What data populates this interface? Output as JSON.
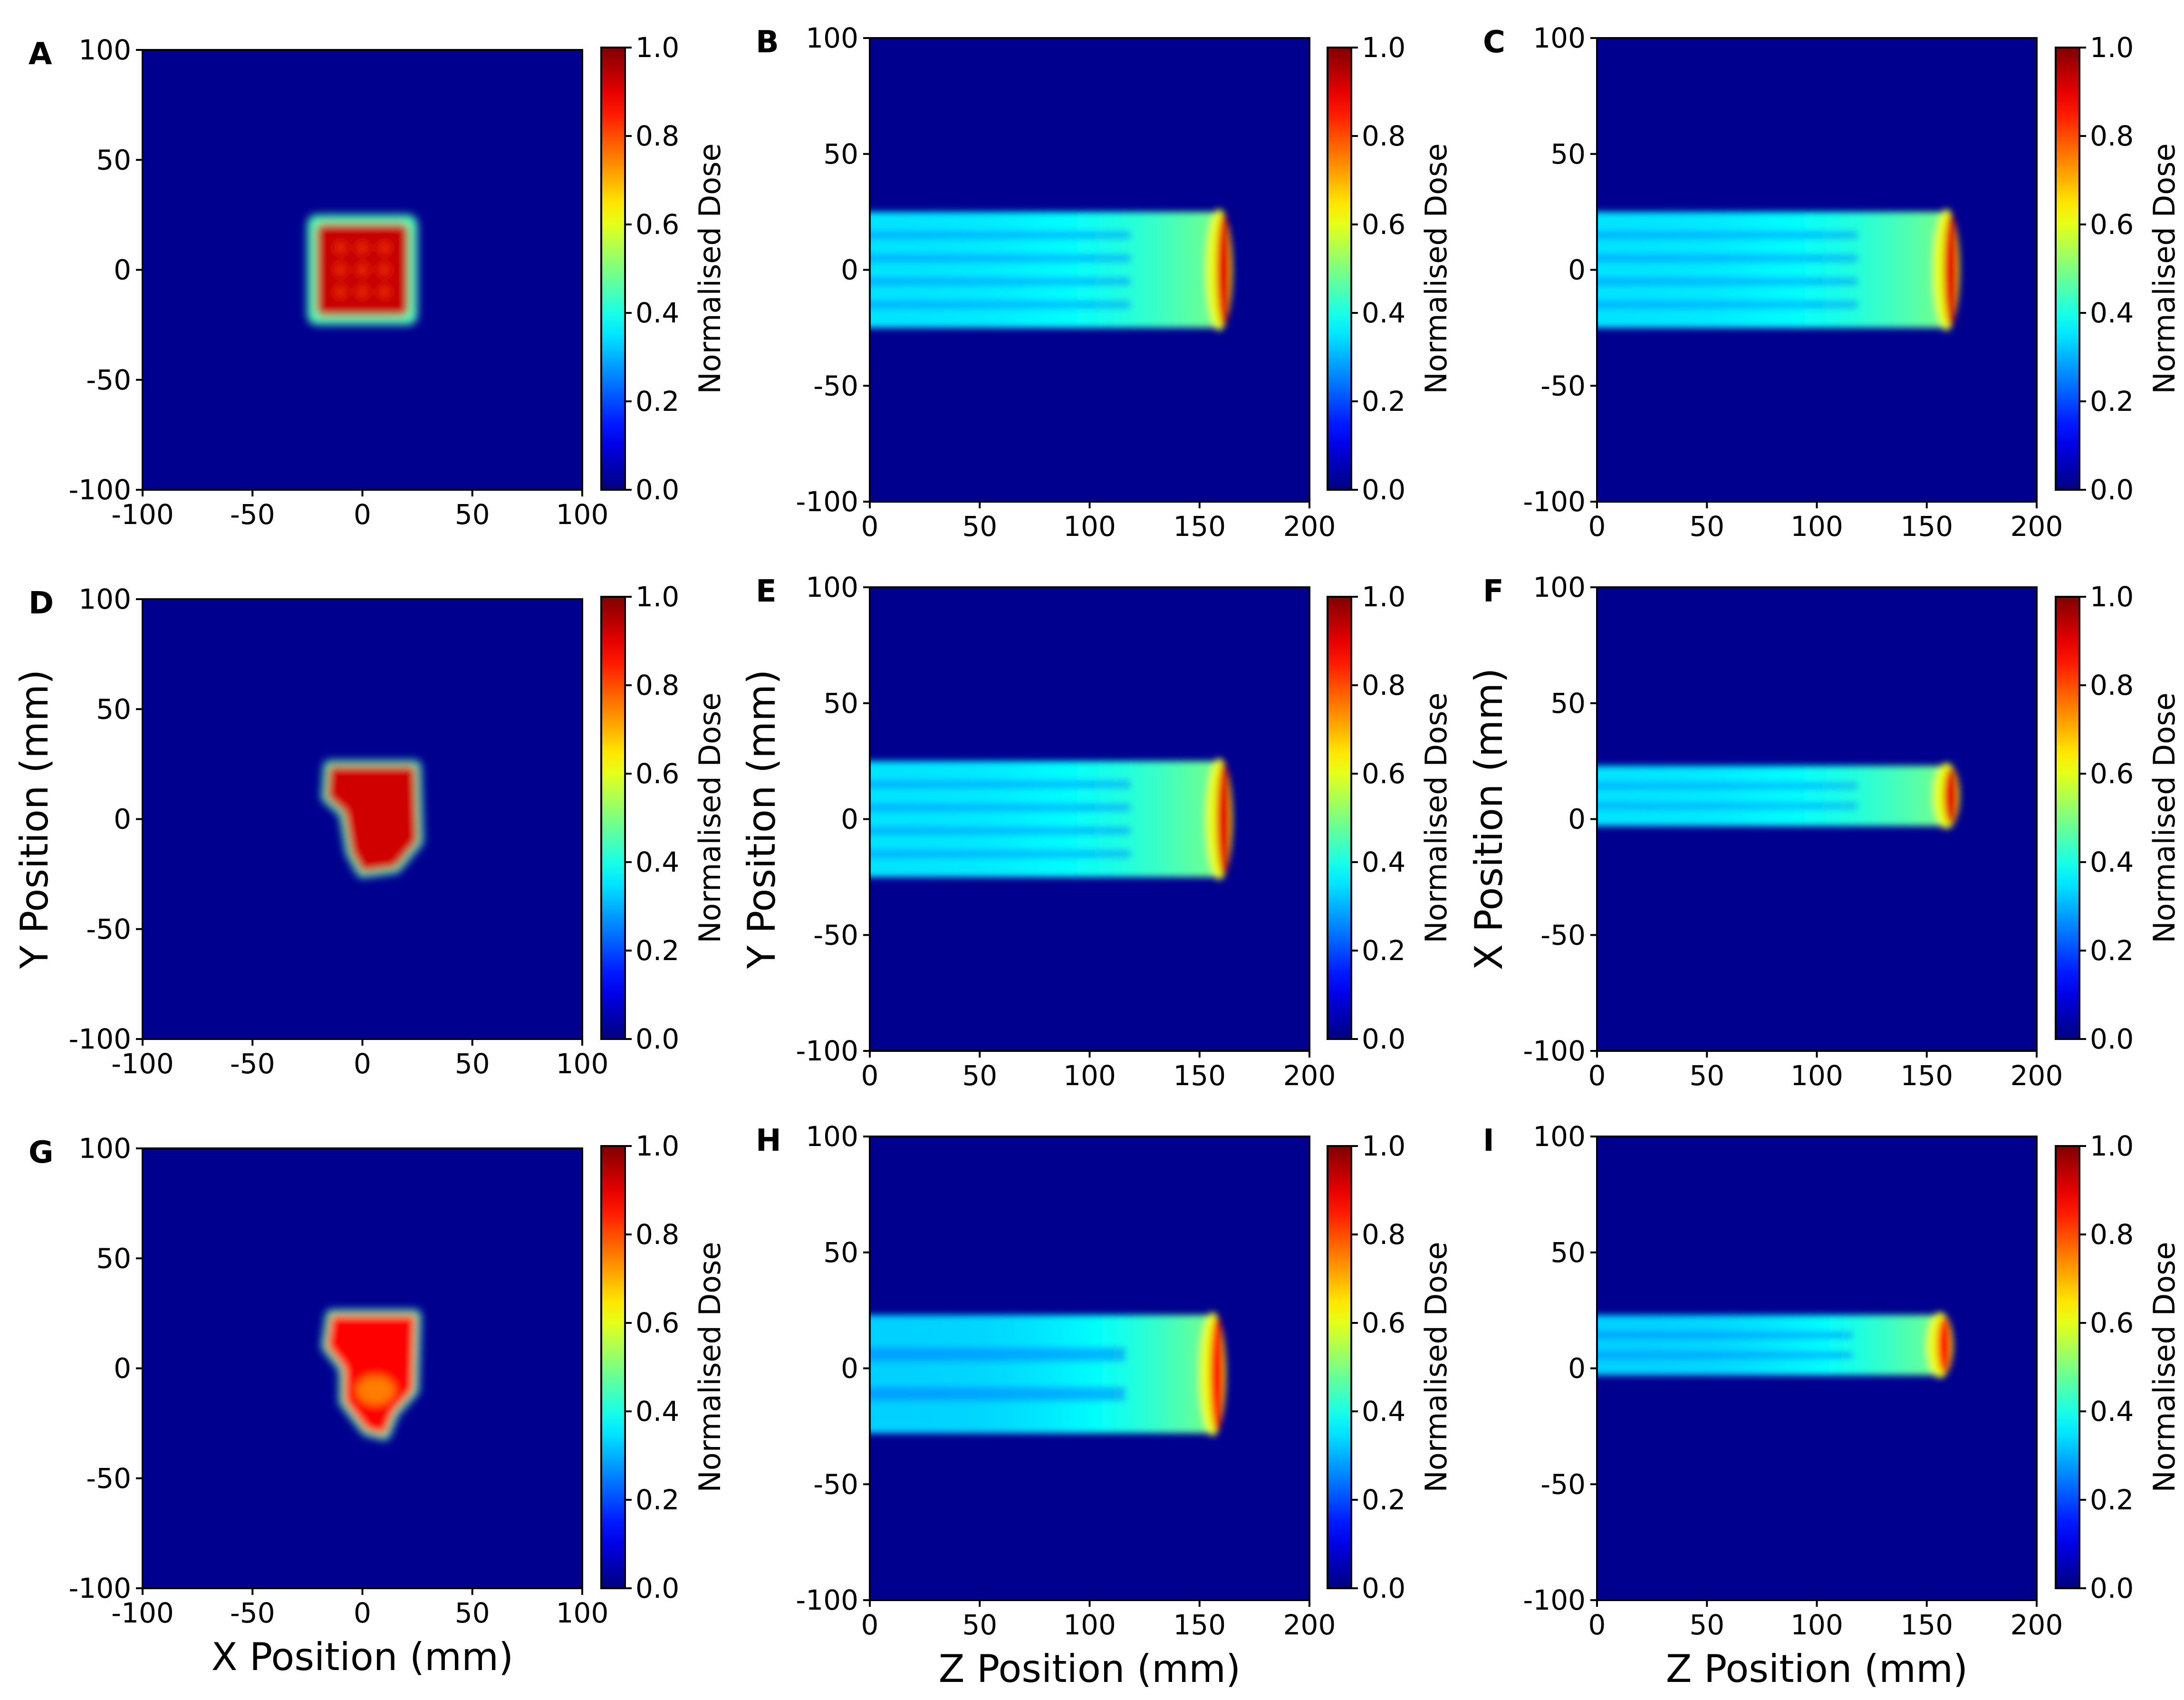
{
  "colormap": {
    "name": "jet",
    "background": "#00008f",
    "stops": [
      "#00007f",
      "#0000ff",
      "#007fff",
      "#00ffff",
      "#7fff7f",
      "#ffff00",
      "#ff7f00",
      "#ff0000",
      "#7f0000"
    ]
  },
  "colorbar": {
    "label": "Normalised Dose",
    "ticks": [
      "0.0",
      "0.2",
      "0.4",
      "0.6",
      "0.8",
      "1.0"
    ]
  },
  "chart_data": [
    {
      "panel": "A",
      "type": "heatmap",
      "view": "transverse",
      "xlabel": "",
      "ylabel": "",
      "xlim": [
        -100,
        100
      ],
      "ylim": [
        -100,
        100
      ],
      "xticks": [
        "-100",
        "-50",
        "0",
        "50",
        "100"
      ],
      "yticks": [
        "-100",
        "-50",
        "0",
        "50",
        "100"
      ],
      "field": {
        "shape": "square",
        "x_range": [
          -25,
          25
        ],
        "y_range": [
          -25,
          25
        ],
        "peak_dose": 1.0
      }
    },
    {
      "panel": "B",
      "type": "heatmap",
      "view": "longitudinal",
      "xlabel": "",
      "ylabel": "",
      "xlim": [
        0,
        200
      ],
      "ylim": [
        -100,
        100
      ],
      "xticks": [
        "0",
        "50",
        "100",
        "150",
        "200"
      ],
      "yticks": [
        "-100",
        "-50",
        "0",
        "50",
        "100"
      ],
      "field": {
        "lateral_range": [
          -25,
          25
        ],
        "bragg_peak_depth": 161,
        "entrance_dose": 0.35,
        "peak_dose": 1.0,
        "stripes": 5
      }
    },
    {
      "panel": "C",
      "type": "heatmap",
      "view": "longitudinal",
      "xlabel": "",
      "ylabel": "",
      "xlim": [
        0,
        200
      ],
      "ylim": [
        -100,
        100
      ],
      "xticks": [
        "0",
        "50",
        "100",
        "150",
        "200"
      ],
      "yticks": [
        "-100",
        "-50",
        "0",
        "50",
        "100"
      ],
      "field": {
        "lateral_range": [
          -25,
          25
        ],
        "bragg_peak_depth": 161,
        "entrance_dose": 0.35,
        "peak_dose": 1.0,
        "stripes": 5
      }
    },
    {
      "panel": "D",
      "type": "heatmap",
      "view": "transverse",
      "xlabel": "",
      "ylabel": "Y Position (mm)",
      "xlim": [
        -100,
        100
      ],
      "ylim": [
        -100,
        100
      ],
      "xticks": [
        "-100",
        "-50",
        "0",
        "50",
        "100"
      ],
      "yticks": [
        "-100",
        "-50",
        "0",
        "50",
        "100"
      ],
      "field": {
        "shape": "irregular",
        "peak_dose": 1.0
      }
    },
    {
      "panel": "E",
      "type": "heatmap",
      "view": "longitudinal",
      "xlabel": "",
      "ylabel": "Y Position (mm)",
      "xlim": [
        0,
        200
      ],
      "ylim": [
        -100,
        100
      ],
      "xticks": [
        "0",
        "50",
        "100",
        "150",
        "200"
      ],
      "yticks": [
        "-100",
        "-50",
        "0",
        "50",
        "100"
      ],
      "field": {
        "lateral_range": [
          -25,
          25
        ],
        "bragg_peak_depth": 161,
        "entrance_dose": 0.35,
        "peak_dose": 1.0,
        "stripes": 5
      }
    },
    {
      "panel": "F",
      "type": "heatmap",
      "view": "longitudinal",
      "xlabel": "",
      "ylabel": "X Position (mm)",
      "xlim": [
        0,
        200
      ],
      "ylim": [
        -100,
        100
      ],
      "xticks": [
        "0",
        "50",
        "100",
        "150",
        "200"
      ],
      "yticks": [
        "-100",
        "-50",
        "0",
        "50",
        "100"
      ],
      "field": {
        "lateral_range": [
          -3,
          23
        ],
        "bragg_peak_depth": 161,
        "entrance_dose": 0.35,
        "peak_dose": 1.0,
        "stripes": 3
      }
    },
    {
      "panel": "G",
      "type": "heatmap",
      "view": "transverse",
      "xlabel": "X Position (mm)",
      "ylabel": "",
      "xlim": [
        -100,
        100
      ],
      "ylim": [
        -100,
        100
      ],
      "xticks": [
        "-100",
        "-50",
        "0",
        "50",
        "100"
      ],
      "yticks": [
        "-100",
        "-50",
        "0",
        "50",
        "100"
      ],
      "field": {
        "shape": "irregular",
        "peak_dose": 0.95
      }
    },
    {
      "panel": "H",
      "type": "heatmap",
      "view": "longitudinal",
      "xlabel": "Z Position (mm)",
      "ylabel": "",
      "xlim": [
        0,
        200
      ],
      "ylim": [
        -100,
        100
      ],
      "xticks": [
        "0",
        "50",
        "100",
        "150",
        "200"
      ],
      "yticks": [
        "-100",
        "-50",
        "0",
        "50",
        "100"
      ],
      "field": {
        "lateral_range": [
          -28,
          23
        ],
        "bragg_peak_depth": 158,
        "entrance_dose": 0.33,
        "peak_dose": 0.95,
        "stripes": 3
      }
    },
    {
      "panel": "I",
      "type": "heatmap",
      "view": "longitudinal",
      "xlabel": "Z Position (mm)",
      "ylabel": "",
      "xlim": [
        0,
        200
      ],
      "ylim": [
        -100,
        100
      ],
      "xticks": [
        "0",
        "50",
        "100",
        "150",
        "200"
      ],
      "yticks": [
        "-100",
        "-50",
        "0",
        "50",
        "100"
      ],
      "field": {
        "lateral_range": [
          -3,
          23
        ],
        "bragg_peak_depth": 158,
        "entrance_dose": 0.33,
        "peak_dose": 0.95,
        "stripes": 3
      }
    }
  ]
}
